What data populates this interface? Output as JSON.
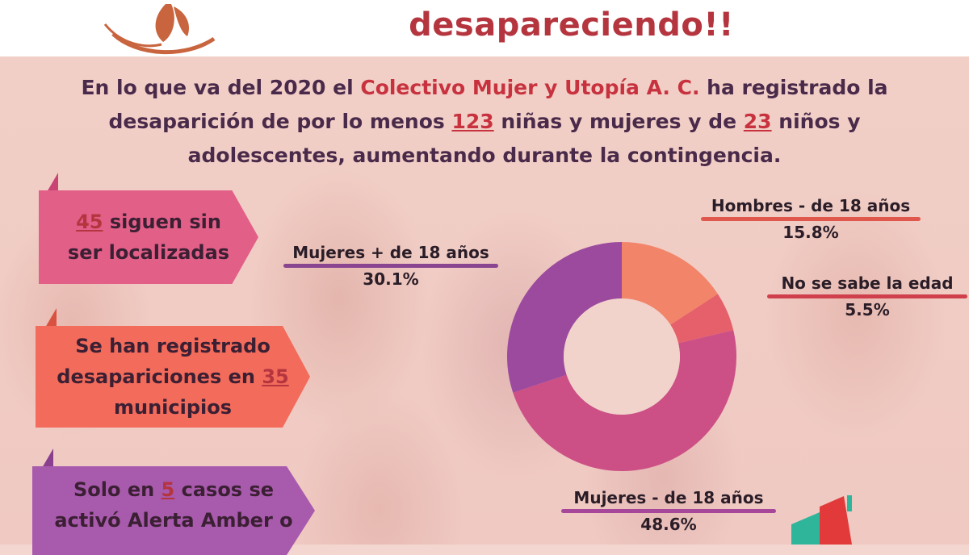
{
  "header": {
    "headline": "desapareciendo!!"
  },
  "intro": {
    "part1": "En lo que va del 2020 el ",
    "org": "Colectivo Mujer y Utopía A. C.",
    "part2": " ha registrado la desaparición de por lo menos ",
    "num_women": "123",
    "part3": " niñas y mujeres y de ",
    "num_men": "23",
    "part4": " niños y adolescentes, aumentando durante la contingencia."
  },
  "cards": {
    "c1_num": "45",
    "c1_text": " siguen sin ser localizadas",
    "c2_text": "Se han registrado desapariciones en ",
    "c2_num": "35",
    "c2_tail": " municipios",
    "c3_pre": "Solo en ",
    "c3_num": "5",
    "c3_text": " casos se activó Alerta Amber o"
  },
  "chart_data": {
    "type": "pie",
    "categories": [
      "Hombres - de 18 años",
      "No se sabe la edad",
      "Mujeres - de 18 años",
      "Mujeres + de 18 años"
    ],
    "values": [
      15.8,
      5.5,
      48.6,
      30.1
    ],
    "labels": [
      "15.8%",
      "5.5%",
      "48.6%",
      "30.1%"
    ],
    "colors": [
      "#f2846a",
      "#e5606a",
      "#cc4f86",
      "#9b4a9e"
    ],
    "underline_colors": [
      "#e0574c",
      "#d0404c",
      "#a6479a",
      "#8a4591"
    ],
    "donut": true
  }
}
